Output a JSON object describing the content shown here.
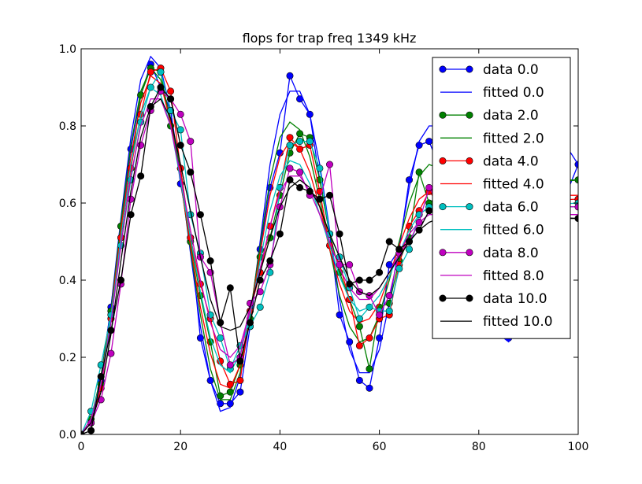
{
  "chart_data": {
    "type": "line",
    "title": "flops for trap freq 1349 kHz",
    "xlabel": "",
    "ylabel": "",
    "xlim": [
      0,
      100
    ],
    "ylim": [
      0.0,
      1.0
    ],
    "x_ticks": [
      0,
      20,
      40,
      60,
      80,
      100
    ],
    "x_tick_labels": [
      "0",
      "20",
      "40",
      "60",
      "80",
      "100"
    ],
    "y_ticks": [
      0.0,
      0.2,
      0.4,
      0.6,
      0.8,
      1.0
    ],
    "y_tick_labels": [
      "0.0",
      "0.2",
      "0.4",
      "0.6",
      "0.8",
      "1.0"
    ],
    "grid": false,
    "legend_position": "upper right",
    "series": [
      {
        "name": "data 0.0",
        "kind": "data",
        "color": "#0000ff",
        "x": [
          0,
          2,
          4,
          6,
          8,
          10,
          12,
          14,
          16,
          18,
          20,
          22,
          24,
          26,
          28,
          30,
          32,
          34,
          36,
          38,
          40,
          42,
          44,
          46,
          48,
          50,
          52,
          54,
          56,
          58,
          60,
          62,
          64,
          66,
          68,
          70,
          86,
          100
        ],
        "y": [
          0.0,
          0.03,
          0.14,
          0.33,
          0.54,
          0.74,
          0.88,
          0.96,
          0.9,
          0.84,
          0.65,
          0.51,
          0.25,
          0.14,
          0.08,
          0.08,
          0.11,
          0.28,
          0.48,
          0.64,
          0.73,
          0.93,
          0.87,
          0.83,
          0.66,
          0.52,
          0.31,
          0.24,
          0.14,
          0.12,
          0.25,
          0.44,
          0.48,
          0.66,
          0.75,
          0.76,
          0.25,
          0.7
        ]
      },
      {
        "name": "fitted 0.0",
        "kind": "fit",
        "color": "#0000ff",
        "x": [
          0,
          2,
          4,
          6,
          8,
          10,
          12,
          14,
          16,
          18,
          20,
          22,
          24,
          26,
          28,
          30,
          32,
          34,
          36,
          38,
          40,
          42,
          44,
          46,
          48,
          50,
          52,
          54,
          56,
          58,
          60,
          62,
          64,
          66,
          68,
          70,
          72,
          74,
          76,
          78,
          80,
          82,
          84,
          86,
          88,
          90,
          92,
          94,
          96,
          98,
          100
        ],
        "y": [
          0.0,
          0.04,
          0.15,
          0.33,
          0.56,
          0.77,
          0.92,
          0.98,
          0.95,
          0.84,
          0.67,
          0.47,
          0.28,
          0.14,
          0.06,
          0.07,
          0.15,
          0.3,
          0.5,
          0.7,
          0.83,
          0.89,
          0.89,
          0.83,
          0.7,
          0.53,
          0.35,
          0.22,
          0.16,
          0.16,
          0.22,
          0.34,
          0.49,
          0.64,
          0.76,
          0.8,
          0.8,
          0.77,
          0.68,
          0.56,
          0.44,
          0.34,
          0.26,
          0.24,
          0.27,
          0.34,
          0.44,
          0.55,
          0.65,
          0.74,
          0.7
        ]
      },
      {
        "name": "data 2.0",
        "kind": "data",
        "color": "#008000",
        "x": [
          0,
          2,
          4,
          6,
          8,
          10,
          12,
          14,
          16,
          18,
          20,
          22,
          24,
          26,
          28,
          30,
          32,
          34,
          36,
          38,
          40,
          42,
          44,
          46,
          48,
          50,
          52,
          54,
          56,
          58,
          60,
          62,
          64,
          66,
          68,
          70,
          72,
          100
        ],
        "y": [
          0.0,
          0.04,
          0.13,
          0.32,
          0.54,
          0.69,
          0.88,
          0.95,
          0.94,
          0.8,
          0.69,
          0.5,
          0.36,
          0.24,
          0.1,
          0.11,
          0.18,
          0.3,
          0.46,
          0.51,
          0.62,
          0.73,
          0.78,
          0.77,
          0.66,
          0.52,
          0.42,
          0.35,
          0.28,
          0.17,
          0.33,
          0.34,
          0.45,
          0.51,
          0.68,
          0.6,
          0.62,
          0.66
        ]
      },
      {
        "name": "fitted 2.0",
        "kind": "fit",
        "color": "#008000",
        "x": [
          0,
          2,
          4,
          6,
          8,
          10,
          12,
          14,
          16,
          18,
          20,
          22,
          24,
          26,
          28,
          30,
          32,
          34,
          36,
          38,
          40,
          42,
          44,
          46,
          48,
          50,
          52,
          54,
          56,
          58,
          60,
          62,
          64,
          66,
          68,
          70,
          72,
          74,
          76,
          78,
          80,
          82,
          84,
          86,
          88,
          90,
          92,
          94,
          96,
          98,
          100
        ],
        "y": [
          0.0,
          0.04,
          0.15,
          0.32,
          0.55,
          0.75,
          0.89,
          0.95,
          0.92,
          0.82,
          0.66,
          0.48,
          0.31,
          0.17,
          0.09,
          0.09,
          0.16,
          0.31,
          0.49,
          0.66,
          0.77,
          0.81,
          0.79,
          0.72,
          0.61,
          0.48,
          0.36,
          0.28,
          0.24,
          0.25,
          0.31,
          0.4,
          0.5,
          0.6,
          0.67,
          0.7,
          0.69,
          0.65,
          0.59,
          0.52,
          0.46,
          0.41,
          0.39,
          0.4,
          0.43,
          0.48,
          0.54,
          0.6,
          0.64,
          0.66,
          0.66
        ]
      },
      {
        "name": "data 4.0",
        "kind": "data",
        "color": "#ff0000",
        "x": [
          0,
          2,
          4,
          6,
          8,
          10,
          12,
          14,
          16,
          18,
          20,
          22,
          24,
          26,
          28,
          30,
          32,
          34,
          36,
          38,
          40,
          42,
          44,
          46,
          48,
          50,
          52,
          54,
          56,
          58,
          60,
          62,
          64,
          66,
          68,
          70,
          72,
          100
        ],
        "y": [
          0.0,
          0.03,
          0.12,
          0.3,
          0.51,
          0.69,
          0.83,
          0.94,
          0.95,
          0.89,
          0.69,
          0.51,
          0.39,
          0.3,
          0.19,
          0.13,
          0.14,
          0.32,
          0.42,
          0.54,
          0.64,
          0.77,
          0.74,
          0.75,
          0.63,
          0.49,
          0.44,
          0.35,
          0.23,
          0.25,
          0.3,
          0.31,
          0.44,
          0.54,
          0.58,
          0.63,
          0.6,
          0.61
        ]
      },
      {
        "name": "fitted 4.0",
        "kind": "fit",
        "color": "#ff0000",
        "x": [
          0,
          2,
          4,
          6,
          8,
          10,
          12,
          14,
          16,
          18,
          20,
          22,
          24,
          26,
          28,
          30,
          32,
          34,
          36,
          38,
          40,
          42,
          44,
          46,
          48,
          50,
          52,
          54,
          56,
          58,
          60,
          62,
          64,
          66,
          68,
          70,
          72,
          74,
          76,
          78,
          80,
          82,
          84,
          86,
          88,
          90,
          92,
          94,
          96,
          98,
          100
        ],
        "y": [
          0.0,
          0.04,
          0.14,
          0.31,
          0.53,
          0.72,
          0.86,
          0.93,
          0.91,
          0.81,
          0.66,
          0.49,
          0.33,
          0.21,
          0.13,
          0.12,
          0.18,
          0.31,
          0.47,
          0.62,
          0.72,
          0.76,
          0.74,
          0.68,
          0.59,
          0.48,
          0.39,
          0.32,
          0.29,
          0.3,
          0.34,
          0.41,
          0.49,
          0.56,
          0.61,
          0.63,
          0.62,
          0.59,
          0.55,
          0.51,
          0.47,
          0.44,
          0.43,
          0.44,
          0.46,
          0.5,
          0.54,
          0.58,
          0.61,
          0.62,
          0.62
        ]
      },
      {
        "name": "data 6.0",
        "kind": "data",
        "color": "#00bfbf",
        "x": [
          0,
          2,
          4,
          6,
          8,
          10,
          12,
          14,
          16,
          18,
          20,
          22,
          24,
          26,
          28,
          30,
          32,
          34,
          36,
          38,
          40,
          42,
          44,
          46,
          48,
          50,
          52,
          54,
          56,
          58,
          60,
          62,
          64,
          66,
          68,
          70,
          72,
          100
        ],
        "y": [
          0.0,
          0.06,
          0.18,
          0.31,
          0.49,
          0.66,
          0.81,
          0.9,
          0.94,
          0.84,
          0.79,
          0.57,
          0.47,
          0.31,
          0.25,
          0.17,
          0.23,
          0.28,
          0.33,
          0.42,
          0.64,
          0.75,
          0.76,
          0.76,
          0.69,
          0.52,
          0.46,
          0.38,
          0.3,
          0.33,
          0.32,
          0.32,
          0.43,
          0.48,
          0.57,
          0.59,
          0.58,
          0.6
        ]
      },
      {
        "name": "fitted 6.0",
        "kind": "fit",
        "color": "#00bfbf",
        "x": [
          0,
          2,
          4,
          6,
          8,
          10,
          12,
          14,
          16,
          18,
          20,
          22,
          24,
          26,
          28,
          30,
          32,
          34,
          36,
          38,
          40,
          42,
          44,
          46,
          48,
          50,
          52,
          54,
          56,
          58,
          60,
          62,
          64,
          66,
          68,
          70,
          72,
          74,
          76,
          78,
          80,
          82,
          84,
          86,
          88,
          90,
          92,
          94,
          96,
          98,
          100
        ],
        "y": [
          0.0,
          0.04,
          0.14,
          0.3,
          0.51,
          0.7,
          0.83,
          0.9,
          0.88,
          0.8,
          0.66,
          0.51,
          0.37,
          0.25,
          0.18,
          0.16,
          0.21,
          0.31,
          0.45,
          0.58,
          0.67,
          0.71,
          0.7,
          0.65,
          0.57,
          0.49,
          0.41,
          0.35,
          0.32,
          0.33,
          0.36,
          0.41,
          0.47,
          0.53,
          0.57,
          0.59,
          0.59,
          0.57,
          0.54,
          0.51,
          0.48,
          0.46,
          0.45,
          0.45,
          0.47,
          0.5,
          0.53,
          0.56,
          0.58,
          0.59,
          0.59
        ]
      },
      {
        "name": "data 8.0",
        "kind": "data",
        "color": "#bf00bf",
        "x": [
          0,
          2,
          4,
          6,
          8,
          10,
          12,
          14,
          16,
          18,
          20,
          22,
          24,
          26,
          28,
          30,
          32,
          34,
          36,
          38,
          40,
          42,
          44,
          46,
          48,
          50,
          52,
          54,
          56,
          58,
          60,
          62,
          64,
          66,
          68,
          70,
          72,
          100
        ],
        "y": [
          0.0,
          0.03,
          0.09,
          0.21,
          0.39,
          0.61,
          0.75,
          0.84,
          0.89,
          0.87,
          0.83,
          0.76,
          0.46,
          0.42,
          0.29,
          0.18,
          0.2,
          0.34,
          0.37,
          0.44,
          0.59,
          0.69,
          0.68,
          0.62,
          0.61,
          0.7,
          0.44,
          0.44,
          0.37,
          0.36,
          0.31,
          0.36,
          0.47,
          0.5,
          0.55,
          0.64,
          0.6,
          0.59
        ]
      },
      {
        "name": "fitted 8.0",
        "kind": "fit",
        "color": "#bf00bf",
        "x": [
          0,
          2,
          4,
          6,
          8,
          10,
          12,
          14,
          16,
          18,
          20,
          22,
          24,
          26,
          28,
          30,
          32,
          34,
          36,
          38,
          40,
          42,
          44,
          46,
          48,
          50,
          52,
          54,
          56,
          58,
          60,
          62,
          64,
          66,
          68,
          70,
          72,
          74,
          76,
          78,
          80,
          82,
          84,
          86,
          88,
          90,
          92,
          94,
          96,
          98,
          100
        ],
        "y": [
          0.0,
          0.04,
          0.13,
          0.29,
          0.49,
          0.67,
          0.8,
          0.87,
          0.87,
          0.8,
          0.67,
          0.53,
          0.4,
          0.29,
          0.22,
          0.2,
          0.23,
          0.32,
          0.43,
          0.54,
          0.63,
          0.67,
          0.67,
          0.63,
          0.57,
          0.5,
          0.43,
          0.38,
          0.35,
          0.35,
          0.38,
          0.42,
          0.47,
          0.52,
          0.55,
          0.57,
          0.57,
          0.56,
          0.54,
          0.51,
          0.49,
          0.47,
          0.46,
          0.46,
          0.48,
          0.5,
          0.52,
          0.55,
          0.56,
          0.57,
          0.57
        ]
      },
      {
        "name": "data 10.0",
        "kind": "data",
        "color": "#000000",
        "x": [
          0,
          2,
          4,
          6,
          8,
          10,
          12,
          14,
          16,
          18,
          20,
          22,
          24,
          26,
          28,
          30,
          32,
          34,
          36,
          38,
          40,
          42,
          44,
          46,
          48,
          50,
          52,
          54,
          56,
          58,
          60,
          62,
          64,
          66,
          68,
          70,
          72,
          100
        ],
        "y": [
          0.0,
          0.01,
          0.15,
          0.27,
          0.4,
          0.57,
          0.67,
          0.85,
          0.9,
          0.87,
          0.75,
          0.68,
          0.57,
          0.45,
          0.29,
          0.38,
          0.19,
          0.29,
          0.4,
          0.45,
          0.52,
          0.66,
          0.64,
          0.63,
          0.61,
          0.62,
          0.52,
          0.39,
          0.4,
          0.4,
          0.42,
          0.5,
          0.48,
          0.5,
          0.53,
          0.58,
          0.58,
          0.56
        ]
      },
      {
        "name": "fitted 10.0",
        "kind": "fit",
        "color": "#000000",
        "x": [
          0,
          2,
          4,
          6,
          8,
          10,
          12,
          14,
          16,
          18,
          20,
          22,
          24,
          26,
          28,
          30,
          32,
          34,
          36,
          38,
          40,
          42,
          44,
          46,
          48,
          50,
          52,
          54,
          56,
          58,
          60,
          62,
          64,
          66,
          68,
          70,
          72,
          74,
          76,
          78,
          80,
          82,
          84,
          86,
          88,
          90,
          92,
          94,
          96,
          98,
          100
        ],
        "y": [
          0.0,
          0.03,
          0.11,
          0.26,
          0.45,
          0.63,
          0.77,
          0.85,
          0.87,
          0.82,
          0.7,
          0.58,
          0.46,
          0.35,
          0.28,
          0.27,
          0.28,
          0.33,
          0.42,
          0.51,
          0.59,
          0.64,
          0.66,
          0.64,
          0.59,
          0.52,
          0.46,
          0.4,
          0.37,
          0.36,
          0.38,
          0.42,
          0.46,
          0.5,
          0.53,
          0.55,
          0.56,
          0.55,
          0.53,
          0.51,
          0.49,
          0.48,
          0.47,
          0.47,
          0.48,
          0.5,
          0.52,
          0.54,
          0.55,
          0.56,
          0.56
        ]
      }
    ]
  }
}
